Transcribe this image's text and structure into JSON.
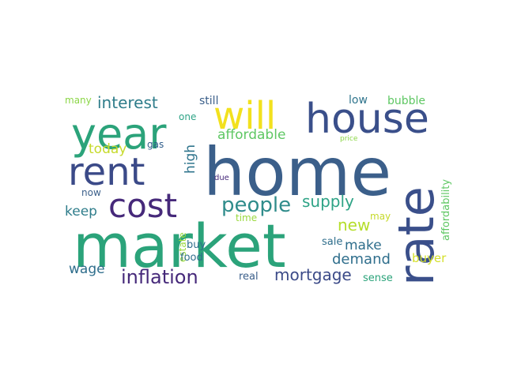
{
  "words": [
    {
      "text": "home",
      "color": "#3b5f8a"
    },
    {
      "text": "market",
      "color": "#2ba37a"
    },
    {
      "text": "rate",
      "color": "#3a4f8a"
    },
    {
      "text": "year",
      "color": "#2ba37a"
    },
    {
      "text": "house",
      "color": "#3a4f8a"
    },
    {
      "text": "will",
      "color": "#f2e11e"
    },
    {
      "text": "rent",
      "color": "#3b4a88"
    },
    {
      "text": "cost",
      "color": "#46297a"
    },
    {
      "text": "people",
      "color": "#2f8c8b"
    },
    {
      "text": "inflation",
      "color": "#46297a"
    },
    {
      "text": "interest",
      "color": "#2f7d8b"
    },
    {
      "text": "supply",
      "color": "#2ea386"
    },
    {
      "text": "mortgage",
      "color": "#3b4a88"
    },
    {
      "text": "demand",
      "color": "#2f6e8c"
    },
    {
      "text": "affordable",
      "color": "#5ec763"
    },
    {
      "text": "today",
      "color": "#c6da2b"
    },
    {
      "text": "high",
      "color": "#30758d"
    },
    {
      "text": "keep",
      "color": "#2f7d8b"
    },
    {
      "text": "make",
      "color": "#2f6e8c"
    },
    {
      "text": "new",
      "color": "#b5de2b"
    },
    {
      "text": "wage",
      "color": "#2f6e8c"
    },
    {
      "text": "buyer",
      "color": "#d4df2a"
    },
    {
      "text": "affordability",
      "color": "#5ec763"
    },
    {
      "text": "bubble",
      "color": "#5ec763"
    },
    {
      "text": "low",
      "color": "#30758d"
    },
    {
      "text": "still",
      "color": "#3b5f8a"
    },
    {
      "text": "many",
      "color": "#8bd646"
    },
    {
      "text": "one",
      "color": "#2ea386"
    },
    {
      "text": "gas",
      "color": "#2f5c8b"
    },
    {
      "text": "price",
      "color": "#8bd646"
    },
    {
      "text": "due",
      "color": "#46297a"
    },
    {
      "text": "now",
      "color": "#3b5f8a"
    },
    {
      "text": "time",
      "color": "#9ad93d"
    },
    {
      "text": "may",
      "color": "#c6da2b"
    },
    {
      "text": "sale",
      "color": "#2f6e8c"
    },
    {
      "text": "buy",
      "color": "#2f6e8c"
    },
    {
      "text": "estate",
      "color": "#9ad93d"
    },
    {
      "text": "food",
      "color": "#2f6e8c"
    },
    {
      "text": "real",
      "color": "#3b5f8a"
    },
    {
      "text": "sense",
      "color": "#2ba37a"
    }
  ]
}
